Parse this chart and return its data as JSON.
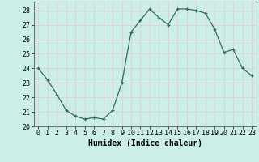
{
  "x": [
    0,
    1,
    2,
    3,
    4,
    5,
    6,
    7,
    8,
    9,
    10,
    11,
    12,
    13,
    14,
    15,
    16,
    17,
    18,
    19,
    20,
    21,
    22,
    23
  ],
  "y": [
    24.0,
    23.2,
    22.2,
    21.1,
    20.7,
    20.5,
    20.6,
    20.5,
    21.1,
    23.0,
    26.5,
    27.3,
    28.1,
    27.5,
    27.0,
    28.1,
    28.1,
    28.0,
    27.8,
    26.7,
    25.1,
    25.3,
    24.0,
    23.5
  ],
  "line_color": "#2e6b5e",
  "marker": "+",
  "marker_size": 3.5,
  "bg_color": "#cceee8",
  "grid_color": "#e8c8c8",
  "xlabel": "Humidex (Indice chaleur)",
  "xlim": [
    -0.5,
    23.5
  ],
  "ylim": [
    20,
    28.6
  ],
  "yticks": [
    20,
    21,
    22,
    23,
    24,
    25,
    26,
    27,
    28
  ],
  "xtick_labels": [
    "0",
    "1",
    "2",
    "3",
    "4",
    "5",
    "6",
    "7",
    "8",
    "9",
    "10",
    "11",
    "12",
    "13",
    "14",
    "15",
    "16",
    "17",
    "18",
    "19",
    "20",
    "21",
    "22",
    "23"
  ],
  "tick_fontsize": 6,
  "label_fontsize": 7
}
